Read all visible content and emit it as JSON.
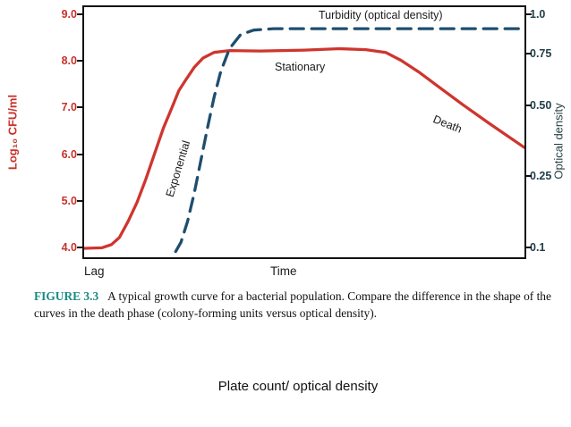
{
  "figure": {
    "left_axis_label": "Log₁₀ CFU/ml",
    "right_axis_label": "Optical density",
    "x_axis_label": "Time",
    "lag_label": "Lag",
    "left_ticks": [
      "9.0",
      "8.0",
      "7.0",
      "6.0",
      "5.0",
      "4.0"
    ],
    "right_ticks": [
      "1.0",
      "0.75",
      "0.50",
      "0.25",
      "0.1"
    ],
    "plot_labels": {
      "turbidity": "Turbidity (optical density)",
      "stationary": "Stationary",
      "exponential": "Exponential",
      "death": "Death"
    }
  },
  "caption": {
    "figure_number": "FIGURE 3.3",
    "text": "A typical growth curve for a bacterial population. Compare the difference in the shape of the curves in the death phase (colony-forming units versus optical density)."
  },
  "footer_text": "Plate count/ optical density",
  "colors": {
    "plate_count_red": "#cf352e",
    "turbidity_navy": "#1f4e6e",
    "figure_number_teal": "#1a8a84"
  },
  "chart_data": {
    "type": "line",
    "title": "",
    "xlabel": "Time",
    "ylabel_left": "Log10 CFU/ml",
    "ylabel_right": "Optical density",
    "x_range": [
      0,
      10
    ],
    "y_left_range": [
      4.0,
      9.0
    ],
    "y_left_ticks": [
      9.0,
      8.0,
      7.0,
      6.0,
      5.0,
      4.0
    ],
    "y_right_ticks": [
      1.0,
      0.75,
      0.5,
      0.25,
      0.1
    ],
    "grid": false,
    "legend": "labels inside plot",
    "phases": [
      "Lag",
      "Exponential",
      "Stationary",
      "Death"
    ],
    "series": [
      {
        "name": "Plate count (Log10 CFU/ml)",
        "style": "solid",
        "color": "#cf352e",
        "points": [
          [
            0,
            4.02
          ],
          [
            0.4,
            4.03
          ],
          [
            0.62,
            4.1
          ],
          [
            0.8,
            4.25
          ],
          [
            1.0,
            4.6
          ],
          [
            1.2,
            5.0
          ],
          [
            1.4,
            5.5
          ],
          [
            1.6,
            6.05
          ],
          [
            1.8,
            6.6
          ],
          [
            2.0,
            7.05
          ],
          [
            2.15,
            7.4
          ],
          [
            2.3,
            7.62
          ],
          [
            2.5,
            7.9
          ],
          [
            2.7,
            8.1
          ],
          [
            2.95,
            8.22
          ],
          [
            3.3,
            8.26
          ],
          [
            4.0,
            8.25
          ],
          [
            5.0,
            8.27
          ],
          [
            5.8,
            8.3
          ],
          [
            6.4,
            8.28
          ],
          [
            6.85,
            8.22
          ],
          [
            7.2,
            8.05
          ],
          [
            7.6,
            7.8
          ],
          [
            8.1,
            7.45
          ],
          [
            8.6,
            7.1
          ],
          [
            9.2,
            6.7
          ],
          [
            10,
            6.18
          ]
        ]
      },
      {
        "name": "Turbidity (optical density)",
        "style": "dashed",
        "color": "#1f4e6e",
        "points": [
          [
            2.08,
            3.95
          ],
          [
            2.2,
            4.15
          ],
          [
            2.35,
            4.6
          ],
          [
            2.5,
            5.2
          ],
          [
            2.65,
            5.9
          ],
          [
            2.8,
            6.6
          ],
          [
            2.95,
            7.25
          ],
          [
            3.1,
            7.8
          ],
          [
            3.3,
            8.3
          ],
          [
            3.55,
            8.6
          ],
          [
            3.85,
            8.7
          ],
          [
            4.3,
            8.73
          ],
          [
            10,
            8.73
          ]
        ]
      }
    ]
  }
}
